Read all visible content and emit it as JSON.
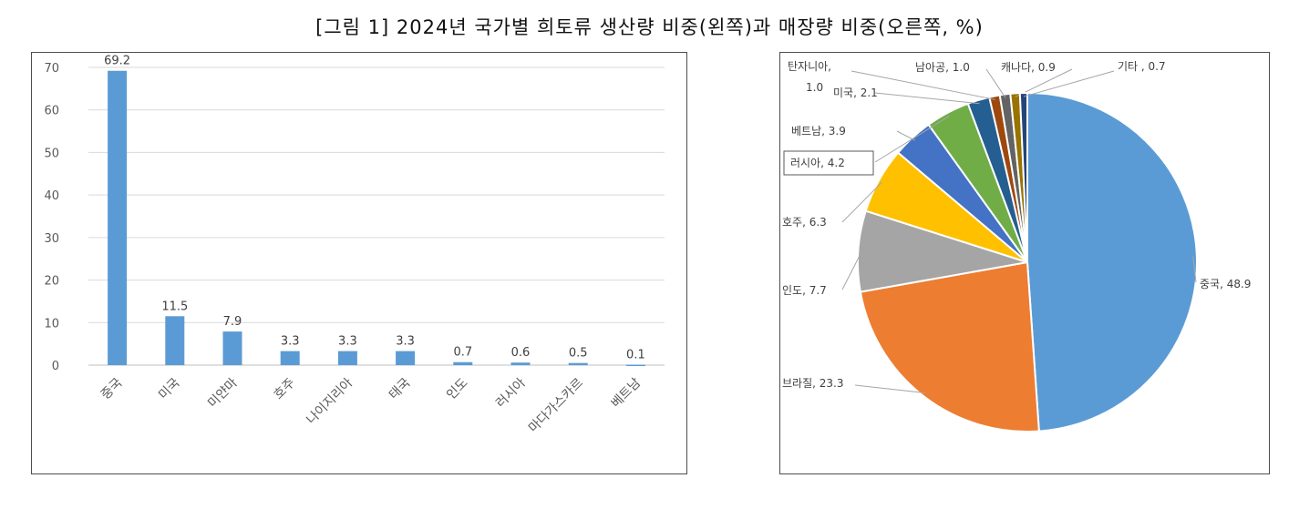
{
  "figure": {
    "title": "[그림 1] 2024년 국가별 희토류 생산량 비중(왼쪽)과 매장량 비중(오른쪽, %)"
  },
  "chart_data": [
    {
      "type": "bar",
      "categories": [
        "중국",
        "미국",
        "미얀마",
        "호주",
        "나이지리아",
        "태국",
        "인도",
        "러시아",
        "마다가스카르",
        "베트남"
      ],
      "values": [
        69.2,
        11.5,
        7.9,
        3.3,
        3.3,
        3.3,
        0.7,
        0.6,
        0.5,
        0.1
      ],
      "value_labels": [
        "69.2",
        "11.5",
        "7.9",
        "3.3",
        "3.3",
        "3.3",
        "0.7",
        "0.6",
        "0.5",
        "0.1"
      ],
      "yticks": [
        0,
        10,
        20,
        30,
        40,
        50,
        60,
        70
      ],
      "ylim": [
        0,
        70
      ],
      "grid": true,
      "legend": "none",
      "bar_color": "#5b9bd5"
    },
    {
      "type": "pie",
      "slices": [
        {
          "label": "중국",
          "value": 48.9,
          "text": "중국, 48.9",
          "color": "#5b9bd5"
        },
        {
          "label": "브라질",
          "value": 23.3,
          "text": "브라질, 23.3",
          "color": "#ed7d31"
        },
        {
          "label": "인도",
          "value": 7.7,
          "text": "인도, 7.7",
          "color": "#a5a5a5"
        },
        {
          "label": "호주",
          "value": 6.3,
          "text": "호주, 6.3",
          "color": "#ffc000"
        },
        {
          "label": "베트남",
          "value": 3.9,
          "text": "베트남, 3.9",
          "color": "#4472c4"
        },
        {
          "label": "러시아",
          "value": 4.2,
          "text": "러시아, 4.2",
          "color": "#70ad47"
        },
        {
          "label": "미국",
          "value": 2.1,
          "text": "미국, 2.1",
          "color": "#255e91"
        },
        {
          "label": "탄자니아",
          "value": 1.0,
          "text": "탄자니아,",
          "text2": "1.0",
          "color": "#9e480e"
        },
        {
          "label": "남아공",
          "value": 1.0,
          "text": "남아공, 1.0",
          "color": "#636363"
        },
        {
          "label": "캐나다",
          "value": 0.9,
          "text": "캐나다, 0.9",
          "color": "#997300"
        },
        {
          "label": "기타",
          "value": 0.7,
          "text": "기타 , 0.7",
          "color": "#264478"
        }
      ],
      "start_angle": "12 o'clock",
      "direction": "clockwise",
      "legend": "none"
    }
  ]
}
